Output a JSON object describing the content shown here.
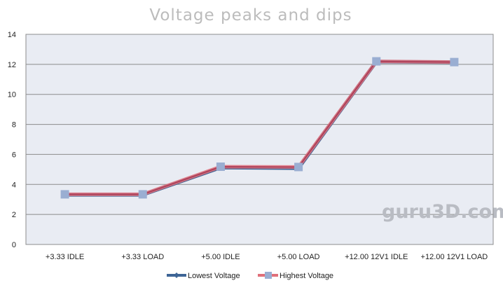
{
  "chart_data": {
    "type": "line",
    "title": "Voltage peaks and dips",
    "categories": [
      "+3.33 IDLE",
      "+3.33 LOAD",
      "+5.00 IDLE",
      "+5.00 LOAD",
      "+12.00 12V1 IDLE",
      "+12.00 12V1 LOAD"
    ],
    "series": [
      {
        "name": "Lowest Voltage",
        "values": [
          3.31,
          3.31,
          5.12,
          5.08,
          12.18,
          12.14
        ],
        "color": "#3e6596"
      },
      {
        "name": "Highest Voltage",
        "values": [
          3.34,
          3.34,
          5.18,
          5.16,
          12.2,
          12.15
        ],
        "color": "#e0707a"
      }
    ],
    "ylim": [
      0,
      14
    ],
    "yticks": [
      "0",
      "2",
      "4",
      "6",
      "8",
      "10",
      "12",
      "14"
    ],
    "grid": true,
    "legend_position": "bottom",
    "colors": {
      "plot_background": "#e9ecf3",
      "grid": "#8c8c8c",
      "line_combined": "#aa3a55",
      "marker": "#9aaed2"
    },
    "watermark": "guru3D.com"
  }
}
